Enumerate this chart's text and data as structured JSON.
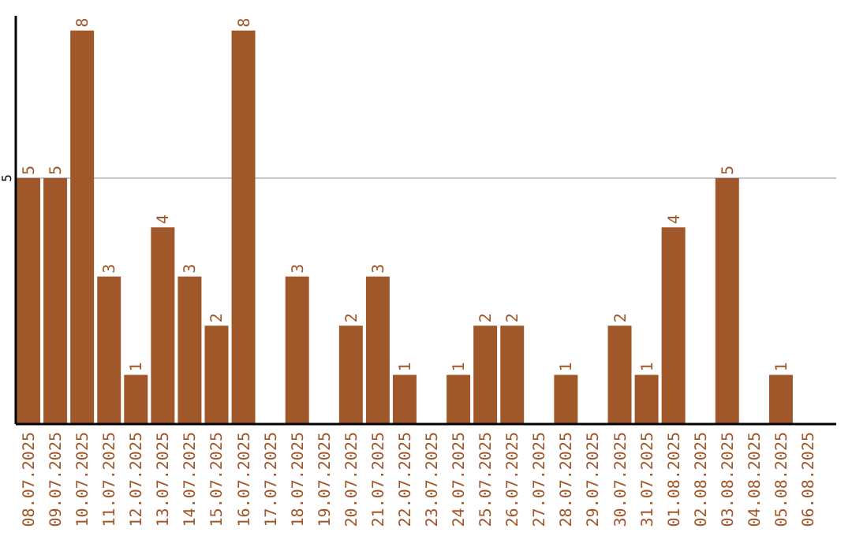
{
  "chart_data": {
    "type": "bar",
    "categories": [
      "08.07.2025",
      "09.07.2025",
      "10.07.2025",
      "11.07.2025",
      "12.07.2025",
      "13.07.2025",
      "14.07.2025",
      "15.07.2025",
      "16.07.2025",
      "17.07.2025",
      "18.07.2025",
      "19.07.2025",
      "20.07.2025",
      "21.07.2025",
      "22.07.2025",
      "23.07.2025",
      "24.07.2025",
      "25.07.2025",
      "26.07.2025",
      "27.07.2025",
      "28.07.2025",
      "29.07.2025",
      "30.07.2025",
      "31.07.2025",
      "01.08.2025",
      "02.08.2025",
      "03.08.2025",
      "04.08.2025",
      "05.08.2025",
      "06.08.2025"
    ],
    "values": [
      5,
      5,
      8,
      3,
      1,
      4,
      3,
      2,
      8,
      0,
      3,
      0,
      2,
      3,
      1,
      0,
      1,
      2,
      2,
      0,
      1,
      0,
      2,
      1,
      4,
      0,
      5,
      0,
      1,
      0
    ],
    "value_labels": [
      "5",
      "5",
      "8",
      "3",
      "1",
      "4",
      "3",
      "2",
      "8",
      null,
      "3",
      null,
      "2",
      "3",
      "1",
      null,
      "1",
      "2",
      "2",
      null,
      "1",
      null,
      "2",
      "1",
      "4",
      null,
      "5",
      null,
      "1",
      null
    ],
    "color": "#a0572a",
    "ylim": [
      0,
      8.3
    ],
    "yticks": [
      5
    ],
    "grid": "y"
  }
}
